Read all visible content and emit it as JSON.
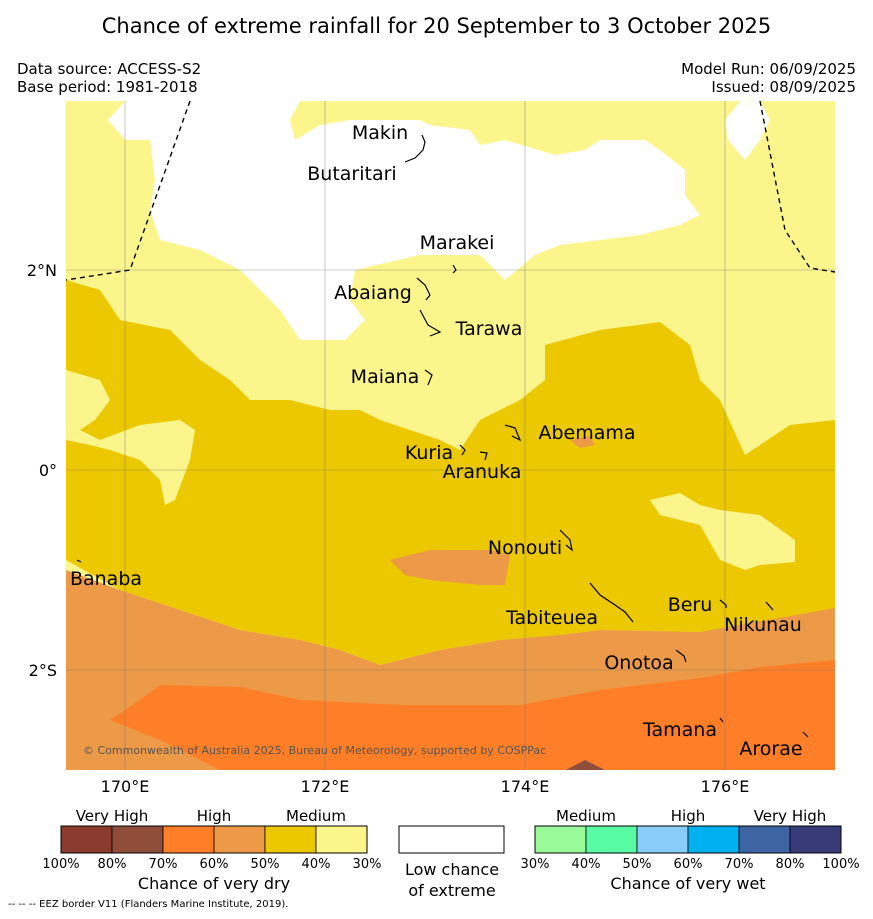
{
  "title": "Chance of extreme rainfall for 20 September to 3 October 2025",
  "meta": {
    "data_source": "Data source: ACCESS-S2",
    "base_period": "Base period: 1981-2018",
    "model_run": "Model Run: 06/09/2025",
    "issued": "Issued: 08/09/2025"
  },
  "map": {
    "lat_labels": [
      "2°N",
      "0°",
      "2°S"
    ],
    "lon_labels": [
      "170°E",
      "172°E",
      "174°E",
      "176°E"
    ],
    "copyright": "© Commonwealth of Australia 2025, Bureau of Meteorology, supported by COSPPac",
    "places": [
      {
        "name": "Makin"
      },
      {
        "name": "Butaritari"
      },
      {
        "name": "Marakei"
      },
      {
        "name": "Abaiang"
      },
      {
        "name": "Tarawa"
      },
      {
        "name": "Maiana"
      },
      {
        "name": "Abemama"
      },
      {
        "name": "Kuria"
      },
      {
        "name": "Aranuka"
      },
      {
        "name": "Nonouti"
      },
      {
        "name": "Banaba"
      },
      {
        "name": "Tabiteuea"
      },
      {
        "name": "Beru"
      },
      {
        "name": "Nikunau"
      },
      {
        "name": "Onotoa"
      },
      {
        "name": "Tamana"
      },
      {
        "name": "Arorae"
      }
    ]
  },
  "legend": {
    "dry": {
      "groups": [
        "Very High",
        "High",
        "Medium"
      ],
      "colors": [
        "#8b3a2e",
        "#8e4e3a",
        "#fe7f27",
        "#ec9a47",
        "#ecc800",
        "#fbf58c"
      ],
      "ticks": [
        "100%",
        "80%",
        "70%",
        "60%",
        "50%",
        "40%",
        "30%"
      ],
      "caption": "Chance of very dry"
    },
    "low": {
      "color": "#ffffff",
      "caption_line1": "Low chance",
      "caption_line2": "of extreme"
    },
    "wet": {
      "groups": [
        "Medium",
        "High",
        "Very High"
      ],
      "colors": [
        "#99fa9a",
        "#58fba4",
        "#89cbf9",
        "#00b0ef",
        "#3e64a4",
        "#393b79"
      ],
      "ticks": [
        "30%",
        "40%",
        "50%",
        "60%",
        "70%",
        "80%",
        "100%"
      ],
      "caption": "Chance of very wet"
    }
  },
  "footer": {
    "eez": "--  --  -- EEZ border V11 (Flanders Marine Institute, 2019)."
  }
}
